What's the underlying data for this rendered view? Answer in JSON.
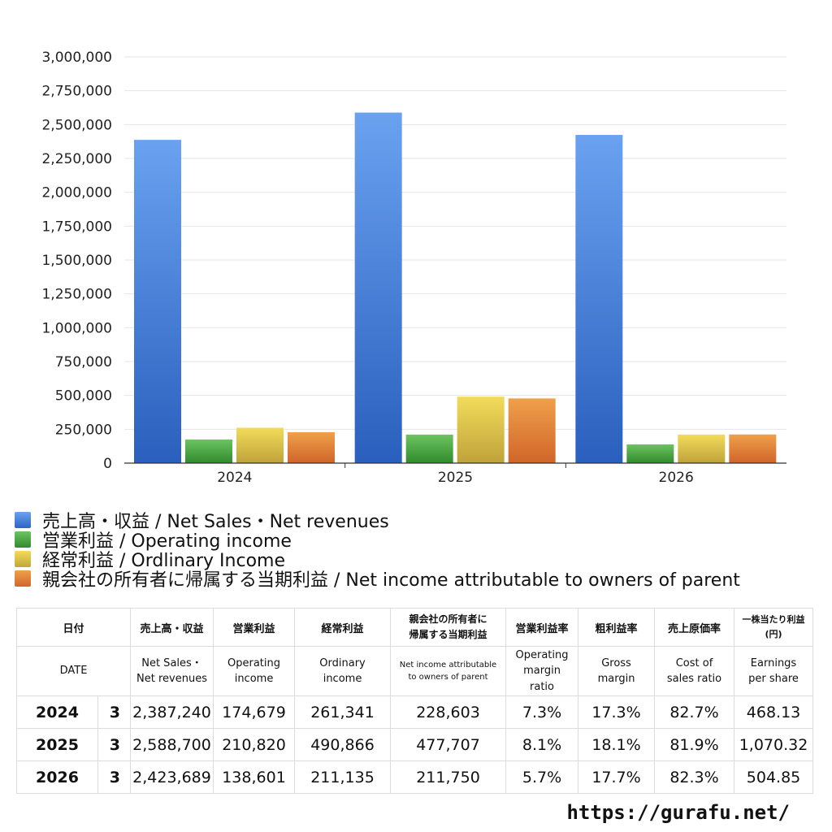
{
  "chart_data": {
    "type": "bar",
    "categories": [
      "2024",
      "2025",
      "2026"
    ],
    "ylim": [
      0,
      3000000
    ],
    "yticks": [
      "0",
      "250,000",
      "500,000",
      "750,000",
      "1,000,000",
      "1,250,000",
      "1,500,000",
      "1,750,000",
      "2,000,000",
      "2,250,000",
      "2,500,000",
      "2,750,000",
      "3,000,000"
    ],
    "grid": true,
    "legend_position": "bottom",
    "series": [
      {
        "name": "売上高・収益 / Net Sales・Net revenues",
        "values": [
          2387240,
          2588700,
          2423689
        ],
        "color": "#3f7fdc"
      },
      {
        "name": "営業利益 / Operating income",
        "values": [
          174679,
          210820,
          138601
        ],
        "color": "#4ea444"
      },
      {
        "name": "経常利益 / Ordlinary Income",
        "values": [
          261341,
          490866,
          211135
        ],
        "color": "#dcc23a"
      },
      {
        "name": "親会社の所有者に帰属する当期利益 / Net income attributable to owners of parent",
        "values": [
          228603,
          477707,
          211750
        ],
        "color": "#e07a2c"
      }
    ]
  },
  "table": {
    "header_jp": [
      "日付",
      "売上高・収益",
      "営業利益",
      "経常利益",
      "親会社の所有者に",
      "帰属する当期利益",
      "営業利益率",
      "粗利益率",
      "売上原価率",
      "一株当たり利益",
      "(円)"
    ],
    "header_en": [
      "DATE",
      "Net Sales・",
      "Net revenues",
      "Operating",
      "income",
      "Ordinary",
      "income",
      "Net income attributable",
      "to owners of parent",
      "Operating",
      "margin",
      "ratio",
      "Gross",
      "margin",
      "Cost of",
      "sales ratio",
      "Earnings",
      "per share"
    ],
    "rows": [
      {
        "year": "2024",
        "month": "3",
        "sales": "2,387,240",
        "op": "174,679",
        "ord": "261,341",
        "net": "228,603",
        "opm": "7.3%",
        "gm": "17.3%",
        "cos": "82.7%",
        "eps": "468.13"
      },
      {
        "year": "2025",
        "month": "3",
        "sales": "2,588,700",
        "op": "210,820",
        "ord": "490,866",
        "net": "477,707",
        "opm": "8.1%",
        "gm": "18.1%",
        "cos": "81.9%",
        "eps": "1,070.32"
      },
      {
        "year": "2026",
        "month": "3",
        "sales": "2,423,689",
        "op": "138,601",
        "ord": "211,135",
        "net": "211,750",
        "opm": "5.7%",
        "gm": "17.7%",
        "cos": "82.3%",
        "eps": "504.85"
      }
    ]
  },
  "source": "https://gurafu.net/"
}
